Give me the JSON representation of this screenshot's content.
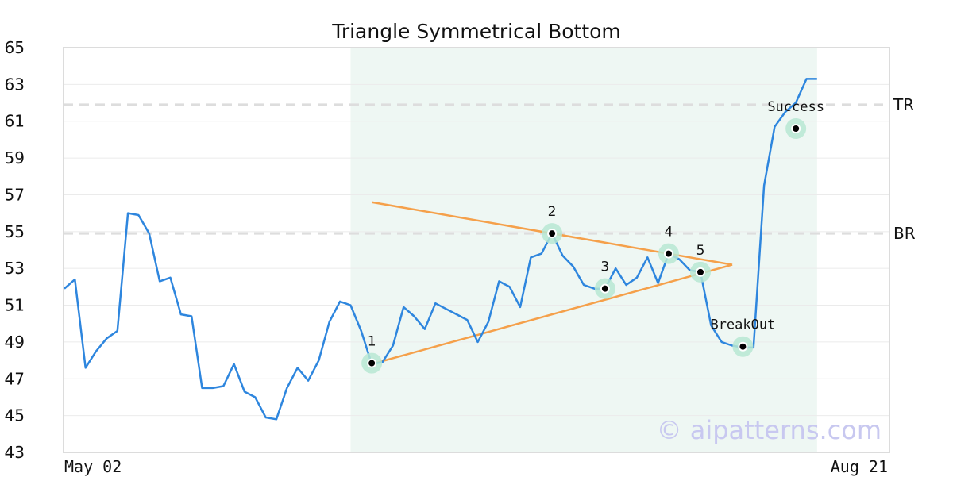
{
  "chart_data": {
    "type": "line",
    "title": "Triangle Symmetrical Bottom",
    "xlabel": "",
    "ylabel": "",
    "ylim": [
      43,
      65
    ],
    "yticks": [
      43,
      45,
      47,
      49,
      51,
      53,
      55,
      57,
      59,
      61,
      63,
      65
    ],
    "x_tick_labels": [
      "May 02",
      "Aug 21"
    ],
    "grid": true,
    "watermark": "© aipatterns.com",
    "colors": {
      "price": "#2e86de",
      "trendline": "#f5a04a",
      "pattern_region": "#eef7f3",
      "marker_halo": "#b7e8d2",
      "reference_line": "#dddddd"
    },
    "series": [
      {
        "values": [
          51.9,
          52.4,
          47.6,
          48.5,
          49.2,
          49.6,
          56.0,
          55.9,
          54.9,
          52.3,
          52.5,
          50.5,
          50.4,
          46.5,
          46.5,
          46.6,
          47.8,
          46.3,
          46.0,
          44.9,
          44.8,
          46.5,
          47.6,
          46.9,
          48.0,
          50.1,
          51.2,
          51.0,
          49.6,
          47.8,
          47.9,
          48.8,
          50.9,
          50.4,
          49.7,
          51.1,
          50.8,
          50.5,
          50.2,
          49.0,
          50.1,
          52.3,
          52.0,
          50.9,
          53.6,
          53.8,
          54.9,
          53.7,
          53.1,
          52.1,
          51.9,
          51.9,
          53.0,
          52.1,
          52.5,
          53.6,
          52.2,
          53.8,
          53.5,
          52.9,
          52.8,
          49.9,
          49.0,
          48.8,
          48.7,
          48.7,
          57.5,
          60.7,
          61.5,
          62.0,
          63.3,
          63.3
        ]
      }
    ],
    "pattern_region": {
      "start_index": 27,
      "end_index": 71
    },
    "trendlines": [
      {
        "from": [
          29,
          56.6
        ],
        "to": [
          63,
          53.2
        ]
      },
      {
        "from": [
          29,
          47.8
        ],
        "to": [
          63,
          53.2
        ]
      }
    ],
    "points": [
      {
        "label": "1",
        "index": 29,
        "y": 47.85
      },
      {
        "label": "2",
        "index": 46,
        "y": 54.9
      },
      {
        "label": "3",
        "index": 51,
        "y": 51.9
      },
      {
        "label": "4",
        "index": 57,
        "y": 53.8
      },
      {
        "label": "5",
        "index": 60,
        "y": 52.8
      }
    ],
    "annotations": [
      {
        "label": "BreakOut",
        "index": 64,
        "y": 48.75
      },
      {
        "label": "Success",
        "index": 69,
        "y": 60.6
      }
    ],
    "reference_lines": [
      {
        "label": "TR",
        "y": 61.9
      },
      {
        "label": "BR",
        "y": 54.9
      }
    ]
  }
}
